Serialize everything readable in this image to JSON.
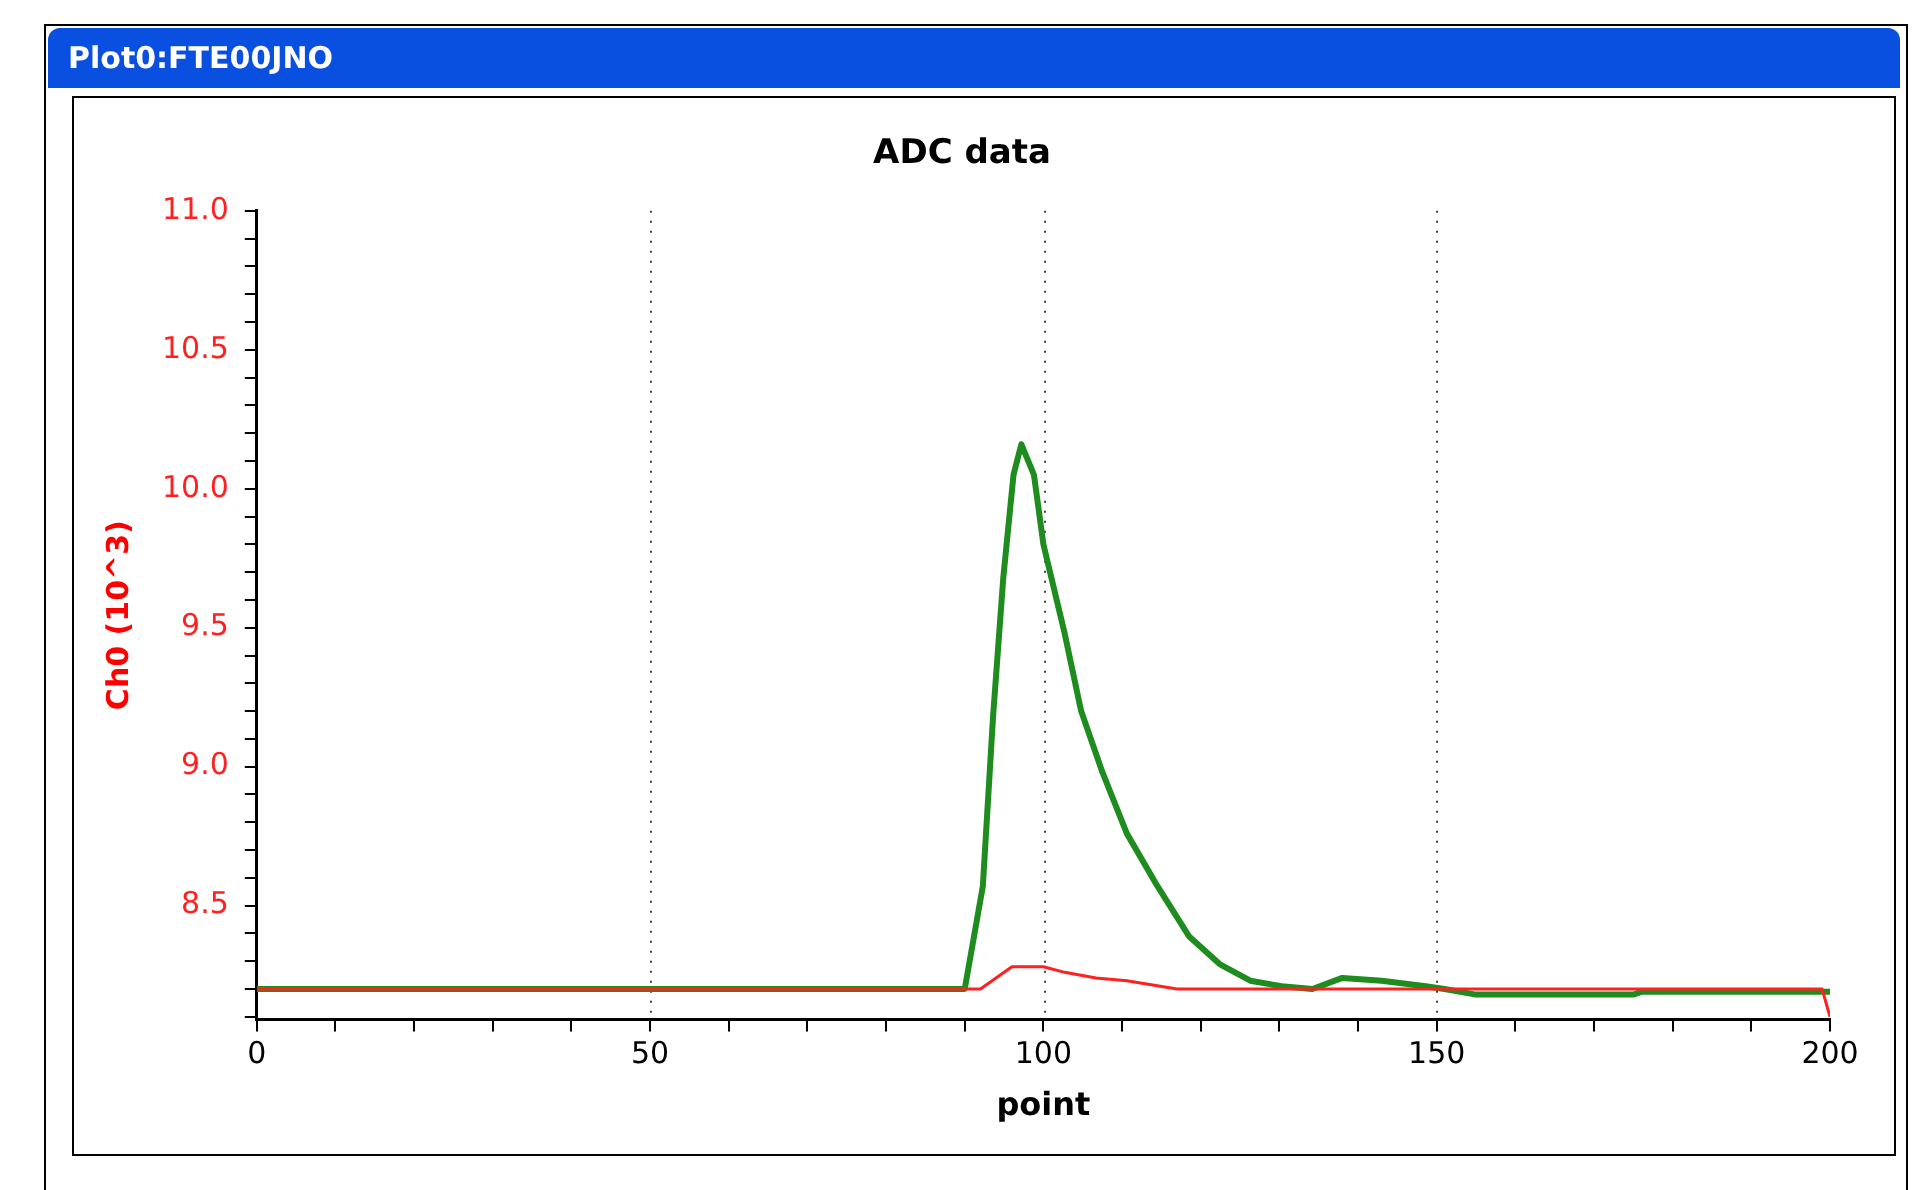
{
  "chart_data": {
    "type": "line",
    "title": "ADC data",
    "xlabel": "point",
    "ylabel": "Ch0 (10^3)",
    "annotations": [
      "Plot0:FTE00JNO"
    ],
    "xlim": [
      0,
      200
    ],
    "ylim": [
      8.09,
      11.0
    ],
    "xticks": [
      0,
      {
        "value": 10,
        "label": null
      },
      {
        "value": 20,
        "label": null
      },
      {
        "value": 30,
        "label": null
      },
      {
        "value": 40,
        "label": null
      },
      50,
      {
        "value": 60,
        "label": null
      },
      {
        "value": 70,
        "label": null
      },
      {
        "value": 80,
        "label": null
      },
      {
        "value": 90,
        "label": null
      },
      100,
      {
        "value": 110,
        "label": null
      },
      {
        "value": 120,
        "label": null
      },
      {
        "value": 130,
        "label": null
      },
      {
        "value": 140,
        "label": null
      },
      150,
      {
        "value": 160,
        "label": null
      },
      {
        "value": 170,
        "label": null
      },
      {
        "value": 180,
        "label": null
      },
      {
        "value": 190,
        "label": null
      },
      200
    ],
    "yticks": [
      {
        "value": 8.1,
        "label": null
      },
      {
        "value": 8.2,
        "label": null
      },
      {
        "value": 8.3,
        "label": null
      },
      {
        "value": 8.4,
        "label": null
      },
      8.5,
      {
        "value": 8.6,
        "label": null
      },
      {
        "value": 8.7,
        "label": null
      },
      {
        "value": 8.8,
        "label": null
      },
      {
        "value": 8.9,
        "label": null
      },
      {
        "value": 9.0,
        "label": "9.0"
      },
      {
        "value": 9.1,
        "label": null
      },
      {
        "value": 9.2,
        "label": null
      },
      {
        "value": 9.3,
        "label": null
      },
      {
        "value": 9.4,
        "label": null
      },
      9.5,
      {
        "value": 9.6,
        "label": null
      },
      {
        "value": 9.7,
        "label": null
      },
      {
        "value": 9.8,
        "label": null
      },
      {
        "value": 9.9,
        "label": null
      },
      {
        "value": 10.0,
        "label": "10.0"
      },
      {
        "value": 10.1,
        "label": null
      },
      {
        "value": 10.2,
        "label": null
      },
      {
        "value": 10.3,
        "label": null
      },
      {
        "value": 10.4,
        "label": null
      },
      10.5,
      {
        "value": 10.6,
        "label": null
      },
      {
        "value": 10.7,
        "label": null
      },
      {
        "value": 10.8,
        "label": null
      },
      {
        "value": 10.9,
        "label": null
      },
      {
        "value": 11.0,
        "label": "11.0"
      }
    ],
    "grid": "x",
    "legend": false,
    "marker": "none",
    "line_style": "solid",
    "series": [
      {
        "color": "#1e8c1e",
        "x": [
          0,
          90,
          92.3,
          93.6,
          94.9,
          96.2,
          97.2,
          98.8,
          100,
          102.7,
          104.8,
          107.5,
          110.6,
          114.5,
          118.5,
          122.4,
          126.3,
          130.3,
          134.2,
          138,
          143,
          148.6,
          151,
          155,
          175,
          176,
          200
        ],
        "values": [
          8.2,
          8.2,
          8.57,
          9.18,
          9.68,
          10.05,
          10.16,
          10.05,
          9.8,
          9.48,
          9.2,
          8.98,
          8.76,
          8.57,
          8.39,
          8.29,
          8.23,
          8.21,
          8.2,
          8.24,
          8.23,
          8.21,
          8.2,
          8.18,
          8.18,
          8.19,
          8.19
        ]
      },
      {
        "color": "#ff2020",
        "x": [
          0,
          92,
          96,
          100,
          102.7,
          106.7,
          110.6,
          117,
          150,
          199,
          200
        ],
        "values": [
          8.2,
          8.2,
          8.28,
          8.28,
          8.26,
          8.24,
          8.23,
          8.2,
          8.2,
          8.2,
          8.1
        ]
      }
    ]
  }
}
